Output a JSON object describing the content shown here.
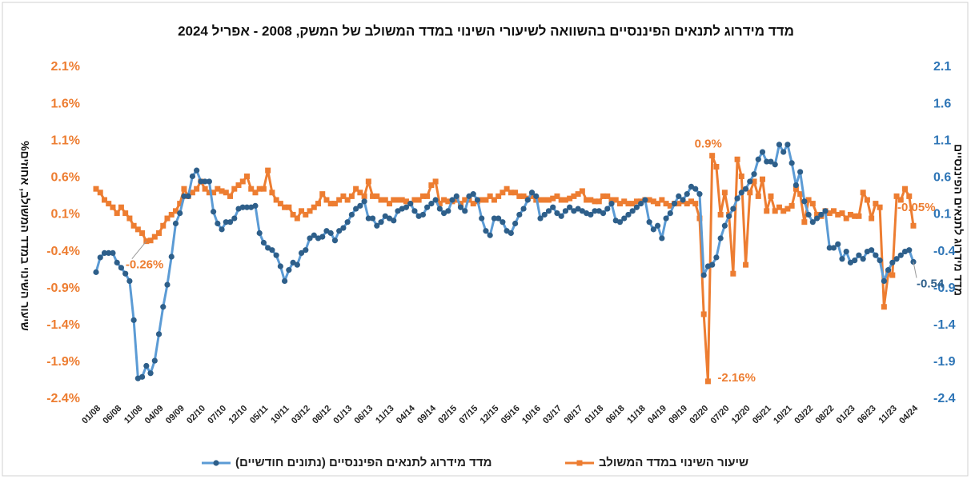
{
  "chart_data": {
    "type": "line",
    "title": "מדד מידרוג לתנאים הפיננסיים בהשוואה לשיעורי השינוי במדד המשולב של המשק, 2008 - אפריל 2024",
    "y_label": "שיעור השינוי  במדד המשולב, אחוזים%",
    "y2_label": "מדד מידרוג לתנאים הפיננסיים",
    "categories": [
      "01/08",
      null,
      null,
      null,
      null,
      "06/08",
      null,
      null,
      null,
      null,
      "11/08",
      null,
      null,
      null,
      null,
      "04/09",
      null,
      null,
      null,
      null,
      "09/09",
      null,
      null,
      null,
      null,
      "02/10",
      null,
      null,
      null,
      null,
      "07/10",
      null,
      null,
      null,
      null,
      "12/10",
      null,
      null,
      null,
      null,
      "05/11",
      null,
      null,
      null,
      null,
      "10/11",
      null,
      null,
      null,
      null,
      "03/12",
      null,
      null,
      null,
      null,
      "08/12",
      null,
      null,
      null,
      null,
      "01/13",
      null,
      null,
      null,
      null,
      "06/13",
      null,
      null,
      null,
      null,
      "11/13",
      null,
      null,
      null,
      null,
      "04/14",
      null,
      null,
      null,
      null,
      "09/14",
      null,
      null,
      null,
      null,
      "02/15",
      null,
      null,
      null,
      null,
      "07/15",
      null,
      null,
      null,
      null,
      "12/15",
      null,
      null,
      null,
      null,
      "05/16",
      null,
      null,
      null,
      null,
      "10/16",
      null,
      null,
      null,
      null,
      "03/17",
      null,
      null,
      null,
      null,
      "08/17",
      null,
      null,
      null,
      null,
      "01/18",
      null,
      null,
      null,
      null,
      "06/18",
      null,
      null,
      null,
      null,
      "11/18",
      null,
      null,
      null,
      null,
      "04/19",
      null,
      null,
      null,
      null,
      "09/19",
      null,
      null,
      null,
      null,
      "02/20",
      null,
      null,
      null,
      null,
      "07/20",
      null,
      null,
      null,
      null,
      "12/20",
      null,
      null,
      null,
      null,
      "05/21",
      null,
      null,
      null,
      null,
      "10/21",
      null,
      null,
      null,
      null,
      "03/22",
      null,
      null,
      null,
      null,
      "08/22",
      null,
      null,
      null,
      null,
      "01/23",
      null,
      null,
      null,
      null,
      "06/23",
      null,
      null,
      null,
      null,
      "11/23",
      null,
      null,
      null,
      null,
      "04/24"
    ],
    "series": [
      {
        "name": "מדד מידרוג לתנאים הפיננסיים (נתונים חודשיים)",
        "color": "#5b9bd5",
        "marker_color": "#2e5f8a",
        "marker": "circle",
        "axis": "y2",
        "values": [
          -0.68,
          -0.48,
          -0.42,
          -0.42,
          -0.42,
          -0.55,
          -0.62,
          -0.7,
          -0.8,
          -1.33,
          -2.12,
          -2.1,
          -1.95,
          -2.05,
          -1.88,
          -1.52,
          -1.15,
          -0.85,
          -0.47,
          -0.02,
          0.12,
          0.35,
          0.35,
          0.62,
          0.7,
          0.55,
          0.55,
          0.55,
          0.14,
          -0.02,
          -0.1,
          0.0,
          0.0,
          0.05,
          0.18,
          0.2,
          0.2,
          0.2,
          0.22,
          -0.15,
          -0.28,
          -0.35,
          -0.38,
          -0.45,
          -0.6,
          -0.8,
          -0.65,
          -0.55,
          -0.58,
          -0.42,
          -0.38,
          -0.22,
          -0.18,
          -0.22,
          -0.2,
          -0.12,
          -0.15,
          -0.25,
          -0.12,
          -0.08,
          0.0,
          0.1,
          0.18,
          0.22,
          0.28,
          0.05,
          0.05,
          -0.05,
          0.0,
          0.08,
          0.05,
          0.02,
          0.15,
          0.18,
          0.2,
          0.25,
          0.15,
          0.08,
          0.1,
          0.2,
          0.25,
          0.3,
          0.18,
          0.12,
          0.15,
          0.3,
          0.35,
          0.2,
          0.15,
          0.35,
          0.38,
          0.3,
          0.05,
          -0.12,
          -0.18,
          0.05,
          0.05,
          0.0,
          -0.12,
          -0.15,
          -0.02,
          0.1,
          0.18,
          0.3,
          0.4,
          0.35,
          0.05,
          0.1,
          0.15,
          0.2,
          0.12,
          0.08,
          0.15,
          0.2,
          0.15,
          0.18,
          0.15,
          0.12,
          0.1,
          0.15,
          0.15,
          0.12,
          0.18,
          0.25,
          0.02,
          0.0,
          0.05,
          0.1,
          0.15,
          0.2,
          0.25,
          0.3,
          0.0,
          -0.1,
          -0.05,
          -0.22,
          0.05,
          0.12,
          0.25,
          0.35,
          0.3,
          0.38,
          0.48,
          0.45,
          0.38,
          -0.72,
          -0.6,
          -0.58,
          -0.48,
          -0.22,
          -0.05,
          0.08,
          0.18,
          0.32,
          0.4,
          0.45,
          0.55,
          0.65,
          0.85,
          0.95,
          0.82,
          0.82,
          0.78,
          1.05,
          0.95,
          1.05,
          0.8,
          0.5,
          0.68,
          0.28,
          0.1,
          0.0,
          0.05,
          0.1,
          0.15,
          -0.35,
          -0.35,
          -0.3,
          -0.5,
          -0.4,
          -0.55,
          -0.52,
          -0.45,
          -0.5,
          -0.4,
          -0.38,
          -0.45,
          -0.52,
          -0.8,
          -0.65,
          -0.55,
          -0.5,
          -0.45,
          -0.4,
          -0.38,
          -0.54
        ],
        "value_labels": {
          "195": "-0.54"
        }
      },
      {
        "name": "שיעור השינוי במדד המשולב",
        "color": "#ed7d31",
        "marker_color": "#ed7d31",
        "marker": "square",
        "values": [
          0.45,
          0.4,
          0.3,
          0.25,
          0.2,
          0.12,
          0.2,
          0.12,
          0.05,
          -0.05,
          -0.1,
          -0.15,
          -0.26,
          -0.25,
          -0.2,
          -0.15,
          -0.05,
          0.05,
          0.1,
          0.15,
          0.25,
          0.45,
          0.35,
          0.4,
          0.45,
          0.55,
          0.45,
          0.4,
          0.4,
          0.45,
          0.42,
          0.4,
          0.35,
          0.45,
          0.5,
          0.55,
          0.62,
          0.45,
          0.4,
          0.45,
          0.45,
          0.7,
          0.4,
          0.3,
          0.25,
          0.2,
          0.2,
          0.1,
          0.05,
          0.15,
          0.1,
          0.15,
          0.2,
          0.25,
          0.38,
          0.3,
          0.25,
          0.25,
          0.3,
          0.35,
          0.3,
          0.35,
          0.45,
          0.4,
          0.35,
          0.55,
          0.35,
          0.35,
          0.3,
          0.3,
          0.25,
          0.3,
          0.3,
          0.3,
          0.28,
          0.25,
          0.3,
          0.3,
          0.35,
          0.35,
          0.5,
          0.55,
          0.25,
          0.3,
          0.28,
          0.28,
          0.3,
          0.25,
          0.3,
          0.3,
          0.25,
          0.28,
          0.3,
          0.3,
          0.35,
          0.3,
          0.35,
          0.4,
          0.45,
          0.4,
          0.4,
          0.35,
          0.35,
          0.32,
          0.35,
          0.3,
          0.3,
          0.3,
          0.3,
          0.32,
          0.35,
          0.3,
          0.3,
          0.32,
          0.35,
          0.38,
          0.42,
          0.3,
          0.3,
          0.28,
          0.28,
          0.35,
          0.35,
          0.3,
          0.3,
          0.25,
          0.28,
          0.25,
          0.25,
          0.28,
          0.28,
          0.3,
          0.3,
          0.28,
          0.25,
          0.3,
          0.25,
          0.22,
          0.25,
          0.25,
          0.28,
          0.25,
          0.28,
          0.25,
          0.05,
          -1.25,
          -2.16,
          0.9,
          0.75,
          0.1,
          0.4,
          0.1,
          -0.7,
          0.85,
          0.62,
          -0.58,
          0.4,
          0.55,
          0.35,
          0.58,
          0.15,
          0.35,
          0.15,
          0.2,
          0.15,
          0.18,
          0.22,
          0.45,
          0.38,
          0.0,
          0.3,
          0.25,
          0.1,
          0.08,
          0.15,
          0.12,
          0.15,
          0.1,
          0.12,
          0.05,
          0.1,
          0.08,
          0.08,
          0.4,
          0.3,
          0.05,
          0.25,
          0.2,
          -1.15,
          -0.7,
          -0.72,
          0.35,
          0.3,
          0.45,
          0.35,
          -0.05
        ],
        "value_labels": {
          "12": "-0.26%",
          "146": "-2.16%",
          "147": "0.9%",
          "195": "-0.05%"
        }
      }
    ],
    "ylim": [
      -2.4,
      2.1
    ],
    "yticks": [
      {
        "value": -2.4,
        "label": "-2.4%"
      },
      {
        "value": -1.9,
        "label": "-1.9%"
      },
      {
        "value": -1.4,
        "label": "-1.4%"
      },
      {
        "value": -0.9,
        "label": "-0.9%"
      },
      {
        "value": -0.4,
        "label": "-0.4%"
      },
      {
        "value": 0.1,
        "label": "0.1%"
      },
      {
        "value": 0.6,
        "label": "0.6%"
      },
      {
        "value": 1.1,
        "label": "1.1%"
      },
      {
        "value": 1.6,
        "label": "1.6%"
      },
      {
        "value": 2.1,
        "label": "2.1%"
      }
    ],
    "y2lim": [
      -2.4,
      2.1
    ],
    "y2ticks": [
      -2.4,
      -1.9,
      -1.4,
      -0.9,
      -0.4,
      0.1,
      0.6,
      1.1,
      1.6,
      2.1
    ],
    "grid": false
  }
}
